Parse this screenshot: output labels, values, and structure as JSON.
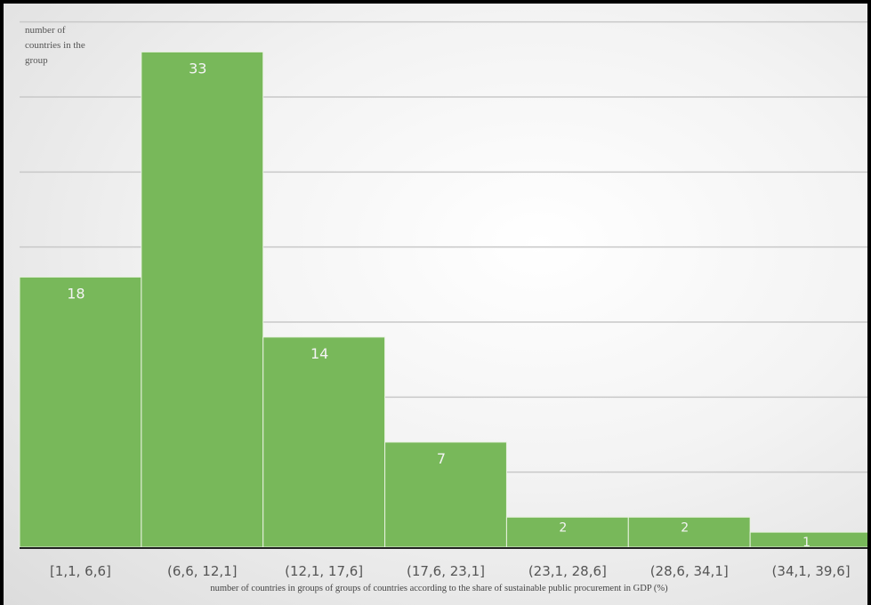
{
  "chart_data": {
    "type": "bar",
    "title": "",
    "ylabel": "number of\ncountries in the\ngroup",
    "xlabel": "number of countries in groups of groups of countries according to the share of sustainable public procurement in GDP (%)",
    "categories": [
      "[1,1, 6,6]",
      "(6,6, 12,1]",
      "(12,1, 17,6]",
      "(17,6, 23,1]",
      "(23,1, 28,6]",
      "(28,6, 34,1]",
      "(34,1, 39,6]"
    ],
    "values": [
      18,
      33,
      14,
      7,
      2,
      2,
      1
    ],
    "ylim": [
      0,
      35
    ],
    "grid": true,
    "colors": {
      "bar": "#78b85a",
      "bar_edge": "#e8f2e0",
      "data_label": "#f4f4f4",
      "tick_label": "#555555",
      "gridline": "#c8c8c8",
      "axis": "#222222"
    }
  }
}
